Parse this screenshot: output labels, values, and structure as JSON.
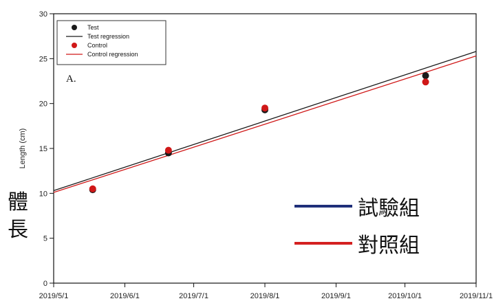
{
  "chart_data": {
    "type": "scatter",
    "title": "",
    "panel_label": "A.",
    "xlabel": "",
    "ylabel": "Length (cm)",
    "x_axis_type": "date",
    "xlim": [
      "2019-05-01",
      "2019-11-01"
    ],
    "ylim": [
      0,
      30
    ],
    "x_ticks": [
      "2019-05-01",
      "2019-06-01",
      "2019-07-01",
      "2019-08-01",
      "2019-09-01",
      "2019-10-01",
      "2019-11-01"
    ],
    "x_tick_labels": [
      "2019/5/1",
      "2019/6/1",
      "2019/7/1",
      "2019/8/1",
      "2019/9/1",
      "2019/10/1",
      "2019/11/1"
    ],
    "y_ticks": [
      0,
      5,
      10,
      15,
      20,
      25,
      30
    ],
    "grid": false,
    "legend_position": "top-left",
    "series": [
      {
        "name": "Test",
        "kind": "points",
        "color": "#1a1a1a",
        "points": [
          {
            "x": "2019-05-18",
            "y": 10.4
          },
          {
            "x": "2019-06-20",
            "y": 14.5
          },
          {
            "x": "2019-08-01",
            "y": 19.3
          },
          {
            "x": "2019-10-10",
            "y": 23.1
          }
        ]
      },
      {
        "name": "Test regression",
        "kind": "line",
        "color": "#1a1a1a",
        "points": [
          {
            "x": "2019-05-01",
            "y": 10.3
          },
          {
            "x": "2019-11-01",
            "y": 25.8
          }
        ]
      },
      {
        "name": "Control",
        "kind": "points",
        "color": "#d01818",
        "points": [
          {
            "x": "2019-05-18",
            "y": 10.5
          },
          {
            "x": "2019-06-20",
            "y": 14.8
          },
          {
            "x": "2019-08-01",
            "y": 19.5
          },
          {
            "x": "2019-10-10",
            "y": 22.4
          }
        ]
      },
      {
        "name": "Control regression",
        "kind": "line",
        "color": "#d01818",
        "points": [
          {
            "x": "2019-05-01",
            "y": 10.1
          },
          {
            "x": "2019-11-01",
            "y": 25.3
          }
        ]
      }
    ]
  },
  "overlay": {
    "side_label": [
      "體",
      "長"
    ],
    "legend": [
      {
        "label": "試驗組",
        "color": "#1f2f7a"
      },
      {
        "label": "對照組",
        "color": "#d42020"
      }
    ]
  }
}
